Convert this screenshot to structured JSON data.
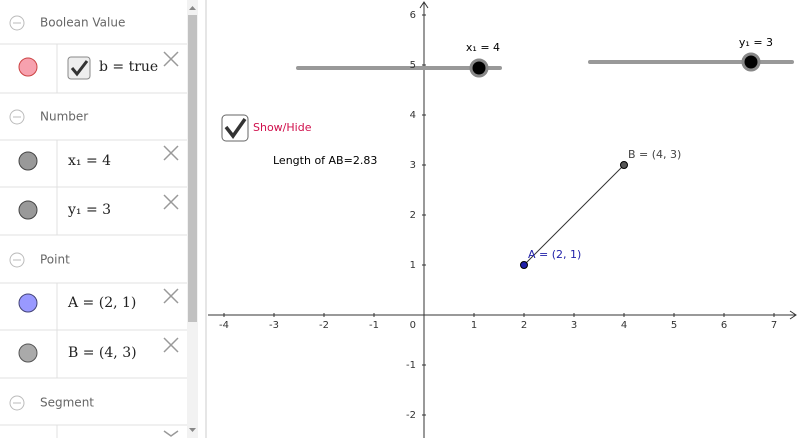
{
  "algebra": {
    "groups": [
      {
        "title": "Boolean Value",
        "items": [
          {
            "text": "b = true"
          }
        ]
      },
      {
        "title": "Number",
        "items": [
          {
            "text": "x₁ = 4"
          },
          {
            "text": "y₁ = 3"
          }
        ]
      },
      {
        "title": "Point",
        "items": [
          {
            "text": "A = (2, 1)"
          },
          {
            "text": "B = (4, 3)"
          }
        ]
      },
      {
        "title": "Segment",
        "items": []
      }
    ]
  },
  "graphics": {
    "x_ticks": [
      -4,
      -3,
      -2,
      -1,
      1,
      2,
      3,
      4,
      5,
      6,
      7
    ],
    "y_ticks": [
      -2,
      -1,
      1,
      2,
      3,
      4,
      5,
      6
    ],
    "origin_label": 0,
    "sliders": [
      {
        "label": "x₁ = 4"
      },
      {
        "label": "y₁ = 3"
      }
    ],
    "checkbox": {
      "label": "Show/Hide"
    },
    "text": "Length of AB=2.83",
    "points": [
      {
        "label": "A = (2, 1)"
      },
      {
        "label": "B = (4, 3)"
      }
    ]
  }
}
